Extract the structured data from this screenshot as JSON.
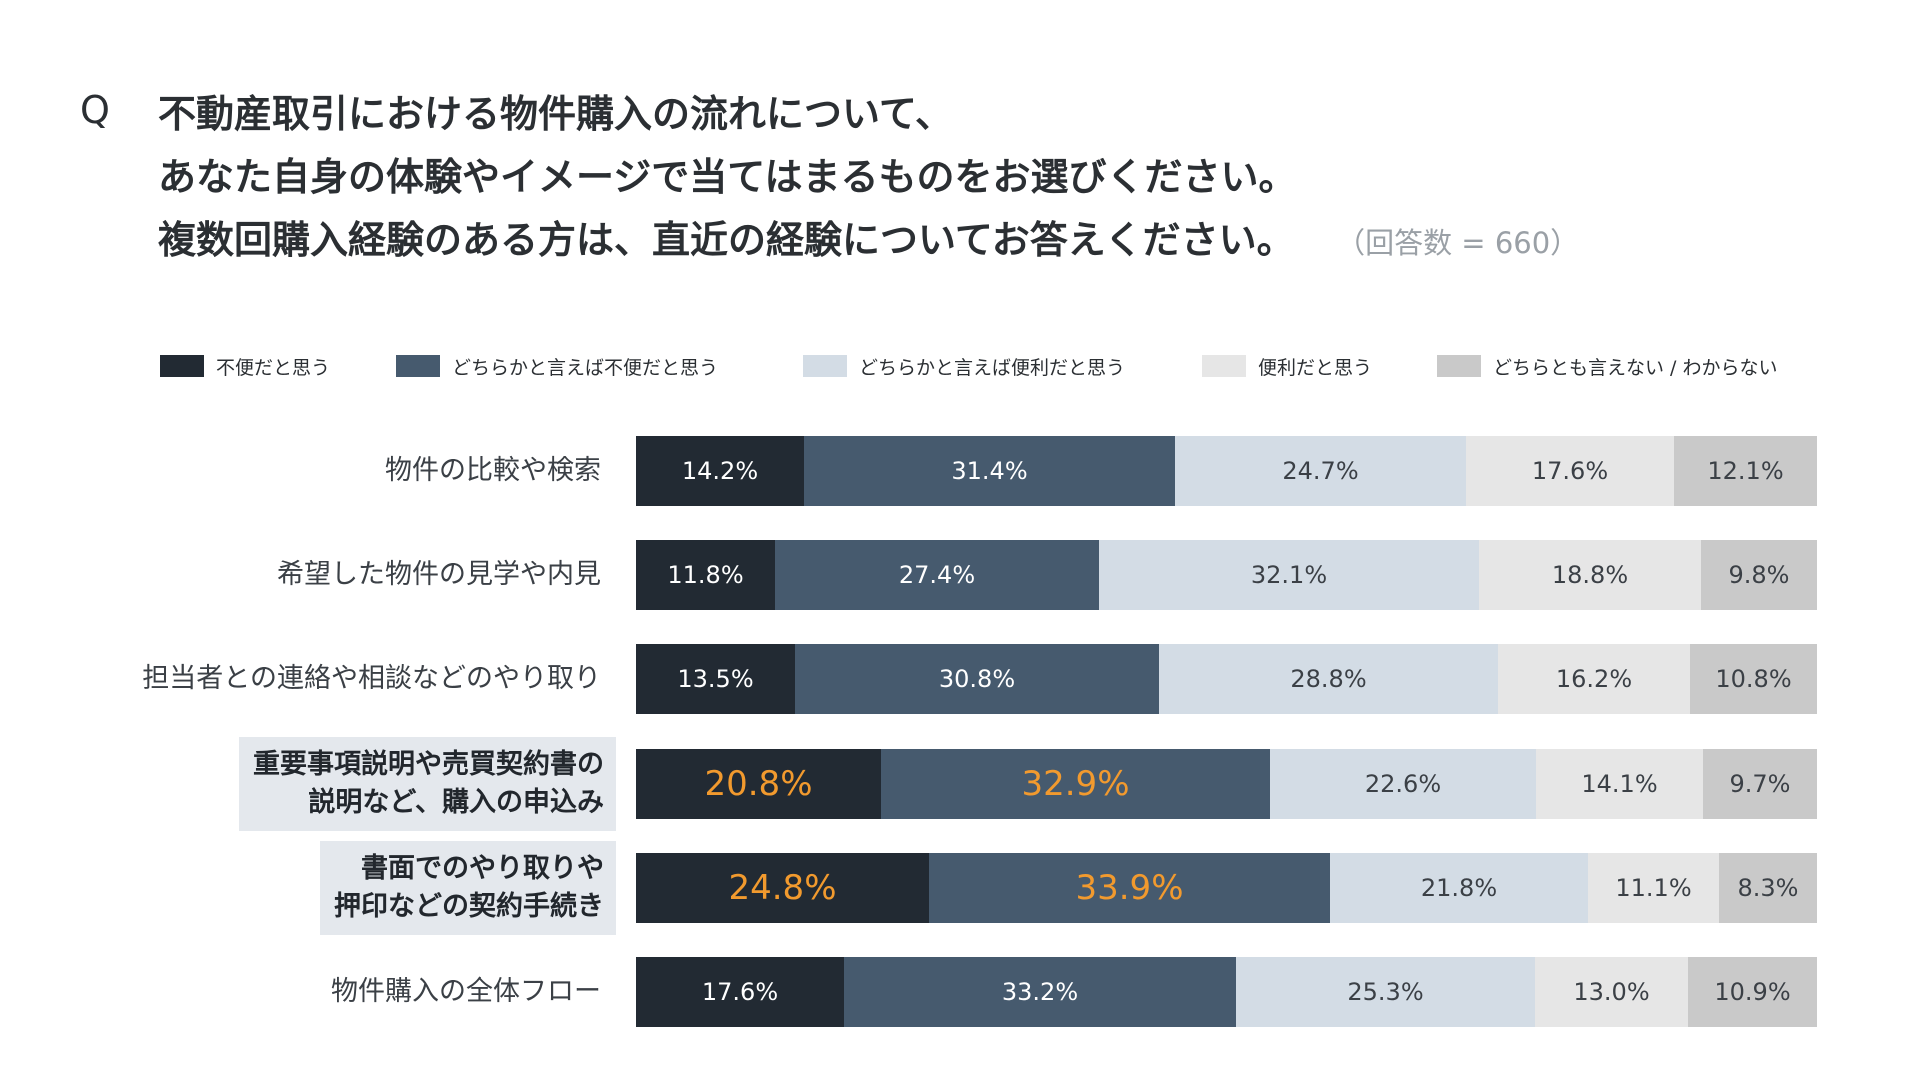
{
  "question": {
    "mark": "Q",
    "lines": [
      "不動産取引における物件購入の流れについて、",
      "あなた自身の体験やイメージで当てはまるものをお選びください。",
      "複数回購入経験のある方は、直近の経験についてお答えください。"
    ],
    "response_count": "（回答数 = 660）"
  },
  "colors": {
    "seg1": "#222a33",
    "seg2": "#465a6e",
    "seg3": "#d3dce5",
    "seg4": "#e6e6e6",
    "seg5": "#c9c9c9",
    "label_light": "#ffffff",
    "label_dark": "#3b4046",
    "emphasis": "#f29a2e",
    "highlight_bg": "#e4e8ed"
  },
  "chart_data": {
    "type": "bar",
    "orientation": "horizontal",
    "stacked": true,
    "normalized_percent": true,
    "title": "",
    "xlabel": "",
    "ylabel": "",
    "xlim": [
      0,
      100
    ],
    "legend_position": "top",
    "categories": [
      "物件の比較や検索",
      "希望した物件の見学や内見",
      "担当者との連絡や相談などのやり取り",
      "重要事項説明や売買契約書の説明など、購入の申込み",
      "書面でのやり取りや押印などの契約手続き",
      "物件購入の全体フロー"
    ],
    "category_display": [
      [
        "物件の比較や検索"
      ],
      [
        "希望した物件の見学や内見"
      ],
      [
        "担当者との連絡や相談などのやり取り"
      ],
      [
        "重要事項説明や売買契約書の",
        "説明など、購入の申込み"
      ],
      [
        "書面でのやり取りや",
        "押印などの契約手続き"
      ],
      [
        "物件購入の全体フロー"
      ]
    ],
    "highlighted_categories": [
      3,
      4
    ],
    "series": [
      {
        "name": "不便だと思う",
        "values": [
          14.2,
          11.8,
          13.5,
          20.8,
          24.8,
          17.6
        ]
      },
      {
        "name": "どちらかと言えば不便だと思う",
        "values": [
          31.4,
          27.4,
          30.8,
          32.9,
          33.9,
          33.2
        ]
      },
      {
        "name": "どちらかと言えば便利だと思う",
        "values": [
          24.7,
          32.1,
          28.8,
          22.6,
          21.8,
          25.3
        ]
      },
      {
        "name": "便利だと思う",
        "values": [
          17.6,
          18.8,
          16.2,
          14.1,
          11.1,
          13.0
        ]
      },
      {
        "name": "どちらとも言えない / わからない",
        "values": [
          12.1,
          9.8,
          10.8,
          9.7,
          8.3,
          10.9
        ]
      }
    ],
    "value_labels": [
      [
        "14.2%",
        "31.4%",
        "24.7%",
        "17.6%",
        "12.1%"
      ],
      [
        "11.8%",
        "27.4%",
        "32.1%",
        "18.8%",
        "9.8%"
      ],
      [
        "13.5%",
        "30.8%",
        "28.8%",
        "16.2%",
        "10.8%"
      ],
      [
        "20.8%",
        "32.9%",
        "22.6%",
        "14.1%",
        "9.7%"
      ],
      [
        "24.8%",
        "33.9%",
        "21.8%",
        "11.1%",
        "8.3%"
      ],
      [
        "17.6%",
        "33.2%",
        "25.3%",
        "13.0%",
        "10.9%"
      ]
    ],
    "emphasized_labels": [
      [
        3,
        0
      ],
      [
        3,
        1
      ],
      [
        4,
        0
      ],
      [
        4,
        1
      ]
    ]
  }
}
